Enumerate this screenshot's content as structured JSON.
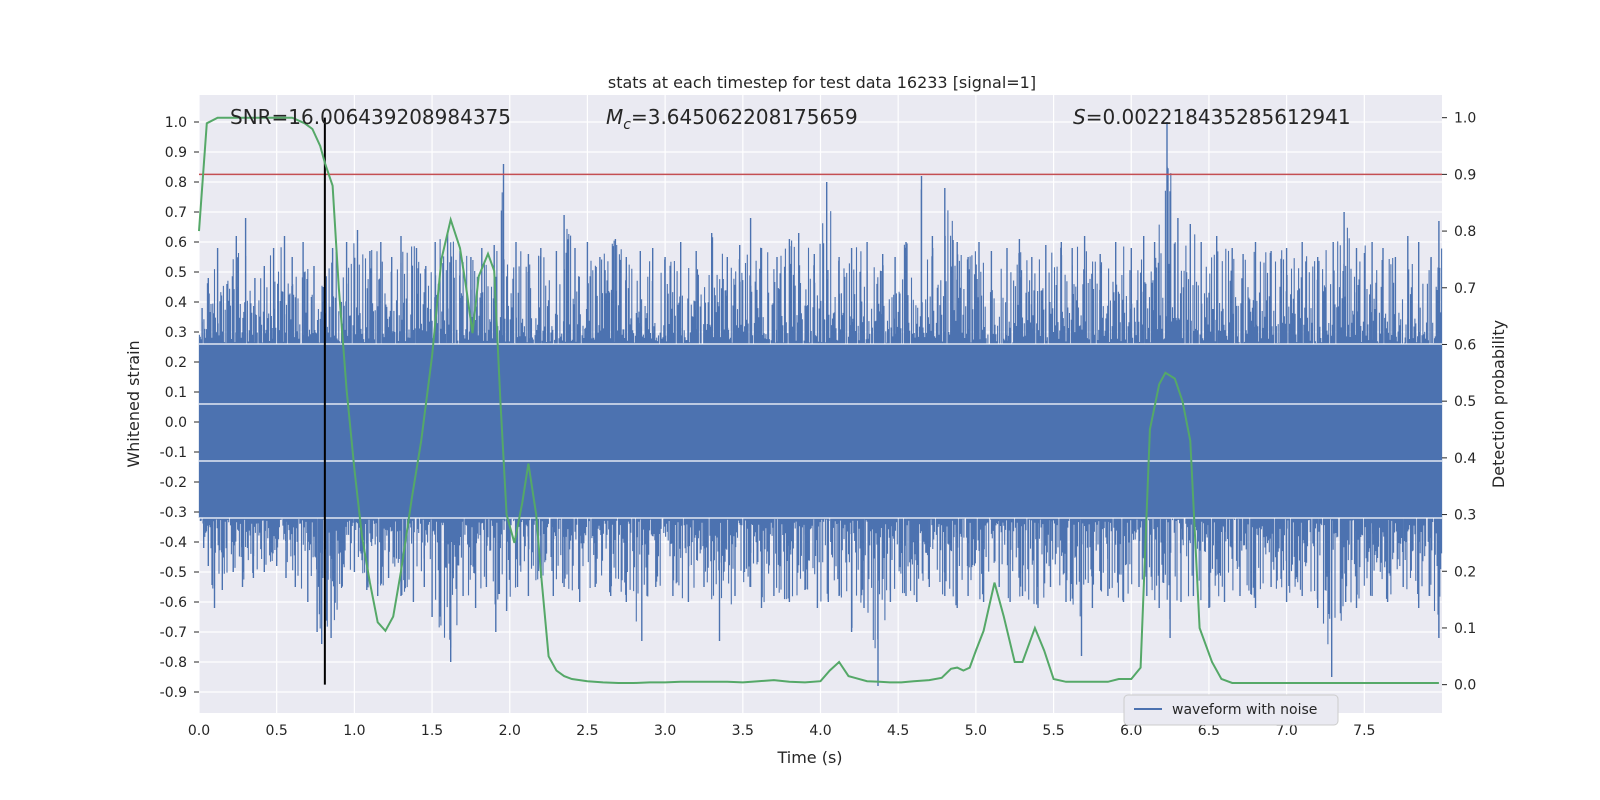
{
  "chart_data": {
    "type": "line",
    "title": "stats at each timestep for test data 16233 [signal=1]",
    "xlabel": "Time (s)",
    "ylabel": "Whitened strain",
    "y2label": "Detection probability",
    "xlim": [
      0.0,
      8.0
    ],
    "ylim": [
      -0.97,
      1.09
    ],
    "y2lim": [
      -0.05,
      1.04
    ],
    "xticks": [
      "0.0",
      "0.5",
      "1.0",
      "1.5",
      "2.0",
      "2.5",
      "3.0",
      "3.5",
      "4.0",
      "4.5",
      "5.0",
      "5.5",
      "6.0",
      "6.5",
      "7.0",
      "7.5"
    ],
    "yticks": [
      "1.0",
      "0.9",
      "0.8",
      "0.7",
      "0.6",
      "0.5",
      "0.4",
      "0.3",
      "0.2",
      "0.1",
      "0.0",
      "-0.1",
      "-0.2",
      "-0.3",
      "-0.4",
      "-0.5",
      "-0.6",
      "-0.7",
      "-0.8",
      "-0.9"
    ],
    "y2ticks": [
      "1.0",
      "0.9",
      "0.8",
      "0.7",
      "0.6",
      "0.5",
      "0.4",
      "0.3",
      "0.2",
      "0.1",
      "0.0"
    ],
    "grid": true,
    "legend": {
      "position": "lower-right",
      "entries": [
        "waveform with noise"
      ]
    },
    "annotations": {
      "snr": "SNR=16.006439208984375",
      "mc_symbol": "M",
      "mc_sub": "c",
      "mc_value": "=3.645062208175659",
      "s_symbol": "S",
      "s_value": "=0.002218435285612941"
    },
    "threshold": {
      "axis": "y2",
      "value": 0.9,
      "color": "#c44e52"
    },
    "marker_time": 0.81,
    "waveform": {
      "name": "waveform with noise",
      "color": "#4c72b0",
      "envelope_band": [
        -0.32,
        0.26
      ],
      "peaks_upper": [
        [
          0.02,
          0.38
        ],
        [
          0.06,
          0.48
        ],
        [
          0.12,
          0.58
        ],
        [
          0.18,
          0.46
        ],
        [
          0.24,
          0.62
        ],
        [
          0.3,
          0.68
        ],
        [
          0.36,
          0.48
        ],
        [
          0.42,
          0.52
        ],
        [
          0.48,
          0.58
        ],
        [
          0.55,
          0.62
        ],
        [
          0.6,
          0.55
        ],
        [
          0.67,
          0.6
        ],
        [
          0.74,
          0.52
        ],
        [
          0.8,
          0.45
        ],
        [
          0.86,
          0.58
        ],
        [
          0.95,
          0.6
        ],
        [
          1.02,
          0.64
        ],
        [
          1.1,
          0.57
        ],
        [
          1.17,
          0.6
        ],
        [
          1.24,
          0.55
        ],
        [
          1.3,
          0.62
        ],
        [
          1.4,
          0.58
        ],
        [
          1.46,
          0.52
        ],
        [
          1.52,
          0.6
        ],
        [
          1.6,
          0.63
        ],
        [
          1.68,
          0.57
        ],
        [
          1.75,
          0.55
        ],
        [
          1.82,
          0.58
        ],
        [
          1.9,
          0.59
        ],
        [
          1.96,
          0.86
        ],
        [
          2.04,
          0.6
        ],
        [
          2.12,
          0.56
        ],
        [
          2.2,
          0.58
        ],
        [
          2.3,
          0.57
        ],
        [
          2.35,
          0.69
        ],
        [
          2.42,
          0.58
        ],
        [
          2.5,
          0.6
        ],
        [
          2.58,
          0.55
        ],
        [
          2.68,
          0.61
        ],
        [
          2.75,
          0.55
        ],
        [
          2.84,
          0.57
        ],
        [
          2.92,
          0.58
        ],
        [
          3.0,
          0.55
        ],
        [
          3.1,
          0.6
        ],
        [
          3.2,
          0.57
        ],
        [
          3.3,
          0.63
        ],
        [
          3.4,
          0.55
        ],
        [
          3.48,
          0.59
        ],
        [
          3.55,
          0.68
        ],
        [
          3.62,
          0.58
        ],
        [
          3.72,
          0.55
        ],
        [
          3.8,
          0.61
        ],
        [
          3.86,
          0.63
        ],
        [
          3.96,
          0.56
        ],
        [
          4.04,
          0.8
        ],
        [
          4.12,
          0.55
        ],
        [
          4.2,
          0.58
        ],
        [
          4.3,
          0.6
        ],
        [
          4.4,
          0.56
        ],
        [
          4.48,
          0.55
        ],
        [
          4.55,
          0.6
        ],
        [
          4.65,
          0.82
        ],
        [
          4.72,
          0.62
        ],
        [
          4.8,
          0.78
        ],
        [
          4.88,
          0.6
        ],
        [
          4.95,
          0.55
        ],
        [
          5.02,
          0.6
        ],
        [
          5.1,
          0.57
        ],
        [
          5.2,
          0.58
        ],
        [
          5.28,
          0.61
        ],
        [
          5.36,
          0.55
        ],
        [
          5.45,
          0.59
        ],
        [
          5.55,
          0.6
        ],
        [
          5.62,
          0.58
        ],
        [
          5.7,
          0.62
        ],
        [
          5.8,
          0.56
        ],
        [
          5.9,
          0.6
        ],
        [
          6.0,
          0.58
        ],
        [
          6.08,
          0.62
        ],
        [
          6.15,
          0.6
        ],
        [
          6.23,
          1.0
        ],
        [
          6.3,
          0.68
        ],
        [
          6.38,
          0.66
        ],
        [
          6.45,
          0.6
        ],
        [
          6.55,
          0.62
        ],
        [
          6.65,
          0.58
        ],
        [
          6.72,
          0.56
        ],
        [
          6.8,
          0.6
        ],
        [
          6.9,
          0.57
        ],
        [
          7.0,
          0.58
        ],
        [
          7.1,
          0.6
        ],
        [
          7.2,
          0.55
        ],
        [
          7.3,
          0.6
        ],
        [
          7.37,
          0.7
        ],
        [
          7.45,
          0.58
        ],
        [
          7.55,
          0.6
        ],
        [
          7.62,
          0.58
        ],
        [
          7.7,
          0.55
        ],
        [
          7.78,
          0.62
        ],
        [
          7.85,
          0.6
        ],
        [
          7.93,
          0.55
        ],
        [
          7.98,
          0.67
        ]
      ],
      "peaks_lower": [
        [
          0.03,
          -0.42
        ],
        [
          0.06,
          -0.48
        ],
        [
          0.1,
          -0.62
        ],
        [
          0.15,
          -0.56
        ],
        [
          0.22,
          -0.5
        ],
        [
          0.28,
          -0.55
        ],
        [
          0.35,
          -0.52
        ],
        [
          0.42,
          -0.5
        ],
        [
          0.5,
          -0.48
        ],
        [
          0.56,
          -0.52
        ],
        [
          0.62,
          -0.55
        ],
        [
          0.7,
          -0.6
        ],
        [
          0.76,
          -0.7
        ],
        [
          0.79,
          -0.74
        ],
        [
          0.85,
          -0.72
        ],
        [
          0.92,
          -0.55
        ],
        [
          1.0,
          -0.5
        ],
        [
          1.08,
          -0.56
        ],
        [
          1.15,
          -0.58
        ],
        [
          1.22,
          -0.52
        ],
        [
          1.3,
          -0.58
        ],
        [
          1.38,
          -0.6
        ],
        [
          1.45,
          -0.55
        ],
        [
          1.5,
          -0.65
        ],
        [
          1.62,
          -0.8
        ],
        [
          1.7,
          -0.58
        ],
        [
          1.78,
          -0.62
        ],
        [
          1.85,
          -0.55
        ],
        [
          1.91,
          -0.7
        ],
        [
          1.98,
          -0.63
        ],
        [
          2.05,
          -0.55
        ],
        [
          2.12,
          -0.58
        ],
        [
          2.2,
          -0.52
        ],
        [
          2.28,
          -0.58
        ],
        [
          2.35,
          -0.55
        ],
        [
          2.45,
          -0.6
        ],
        [
          2.55,
          -0.55
        ],
        [
          2.65,
          -0.58
        ],
        [
          2.75,
          -0.6
        ],
        [
          2.85,
          -0.73
        ],
        [
          2.94,
          -0.55
        ],
        [
          3.05,
          -0.58
        ],
        [
          3.15,
          -0.6
        ],
        [
          3.25,
          -0.55
        ],
        [
          3.35,
          -0.73
        ],
        [
          3.45,
          -0.58
        ],
        [
          3.55,
          -0.55
        ],
        [
          3.62,
          -0.62
        ],
        [
          3.7,
          -0.58
        ],
        [
          3.8,
          -0.6
        ],
        [
          3.9,
          -0.56
        ],
        [
          3.98,
          -0.62
        ],
        [
          4.05,
          -0.6
        ],
        [
          4.12,
          -0.58
        ],
        [
          4.2,
          -0.7
        ],
        [
          4.28,
          -0.62
        ],
        [
          4.37,
          -0.88
        ],
        [
          4.45,
          -0.6
        ],
        [
          4.55,
          -0.58
        ],
        [
          4.62,
          -0.6
        ],
        [
          4.7,
          -0.55
        ],
        [
          4.8,
          -0.58
        ],
        [
          4.88,
          -0.62
        ],
        [
          4.95,
          -0.58
        ],
        [
          5.05,
          -0.6
        ],
        [
          5.15,
          -0.55
        ],
        [
          5.22,
          -0.6
        ],
        [
          5.3,
          -0.58
        ],
        [
          5.4,
          -0.62
        ],
        [
          5.48,
          -0.55
        ],
        [
          5.58,
          -0.6
        ],
        [
          5.68,
          -0.78
        ],
        [
          5.75,
          -0.62
        ],
        [
          5.85,
          -0.58
        ],
        [
          5.95,
          -0.6
        ],
        [
          6.05,
          -0.55
        ],
        [
          6.1,
          -0.58
        ],
        [
          6.18,
          -0.62
        ],
        [
          6.25,
          -0.72
        ],
        [
          6.32,
          -0.6
        ],
        [
          6.4,
          -0.58
        ],
        [
          6.5,
          -0.62
        ],
        [
          6.6,
          -0.6
        ],
        [
          6.7,
          -0.58
        ],
        [
          6.8,
          -0.62
        ],
        [
          6.9,
          -0.55
        ],
        [
          7.0,
          -0.6
        ],
        [
          7.1,
          -0.58
        ],
        [
          7.2,
          -0.62
        ],
        [
          7.29,
          -0.85
        ],
        [
          7.38,
          -0.6
        ],
        [
          7.45,
          -0.62
        ],
        [
          7.55,
          -0.58
        ],
        [
          7.65,
          -0.6
        ],
        [
          7.75,
          -0.55
        ],
        [
          7.85,
          -0.62
        ],
        [
          7.92,
          -0.58
        ],
        [
          7.98,
          -0.72
        ]
      ]
    },
    "detection_probability": {
      "color": "#55a868",
      "x": [
        0.0,
        0.05,
        0.12,
        0.2,
        0.3,
        0.4,
        0.5,
        0.6,
        0.68,
        0.73,
        0.78,
        0.81,
        0.86,
        0.9,
        0.95,
        1.0,
        1.05,
        1.1,
        1.15,
        1.2,
        1.25,
        1.3,
        1.37,
        1.43,
        1.5,
        1.56,
        1.62,
        1.68,
        1.72,
        1.76,
        1.8,
        1.86,
        1.9,
        1.94,
        1.98,
        2.03,
        2.08,
        2.12,
        2.17,
        2.2,
        2.25,
        2.3,
        2.35,
        2.4,
        2.45,
        2.5,
        2.6,
        2.7,
        2.8,
        2.9,
        3.0,
        3.1,
        3.2,
        3.3,
        3.4,
        3.5,
        3.6,
        3.7,
        3.8,
        3.9,
        4.0,
        4.06,
        4.12,
        4.18,
        4.22,
        4.3,
        4.38,
        4.45,
        4.52,
        4.6,
        4.7,
        4.78,
        4.84,
        4.88,
        4.92,
        4.96,
        5.0,
        5.05,
        5.12,
        5.18,
        5.25,
        5.3,
        5.38,
        5.44,
        5.5,
        5.58,
        5.66,
        5.75,
        5.85,
        5.92,
        6.0,
        6.06,
        6.12,
        6.18,
        6.22,
        6.28,
        6.33,
        6.38,
        6.44,
        6.52,
        6.58,
        6.65,
        6.75,
        6.85,
        7.0,
        7.2,
        7.4,
        7.6,
        7.8,
        7.98
      ],
      "y": [
        0.8,
        0.99,
        1.0,
        1.0,
        1.0,
        1.0,
        1.0,
        1.0,
        0.99,
        0.98,
        0.95,
        0.92,
        0.88,
        0.7,
        0.52,
        0.38,
        0.26,
        0.18,
        0.11,
        0.095,
        0.12,
        0.2,
        0.33,
        0.43,
        0.58,
        0.75,
        0.82,
        0.77,
        0.7,
        0.62,
        0.72,
        0.76,
        0.73,
        0.5,
        0.3,
        0.25,
        0.32,
        0.39,
        0.3,
        0.2,
        0.05,
        0.025,
        0.015,
        0.01,
        0.008,
        0.006,
        0.004,
        0.003,
        0.003,
        0.004,
        0.004,
        0.005,
        0.005,
        0.005,
        0.005,
        0.004,
        0.006,
        0.008,
        0.005,
        0.004,
        0.006,
        0.025,
        0.04,
        0.015,
        0.012,
        0.006,
        0.005,
        0.004,
        0.004,
        0.006,
        0.008,
        0.012,
        0.028,
        0.03,
        0.025,
        0.03,
        0.06,
        0.095,
        0.18,
        0.12,
        0.04,
        0.04,
        0.1,
        0.06,
        0.01,
        0.005,
        0.005,
        0.005,
        0.005,
        0.01,
        0.01,
        0.03,
        0.45,
        0.53,
        0.55,
        0.54,
        0.5,
        0.43,
        0.1,
        0.04,
        0.01,
        0.003,
        0.003,
        0.003,
        0.003,
        0.003,
        0.003,
        0.003,
        0.003,
        0.003
      ]
    }
  }
}
